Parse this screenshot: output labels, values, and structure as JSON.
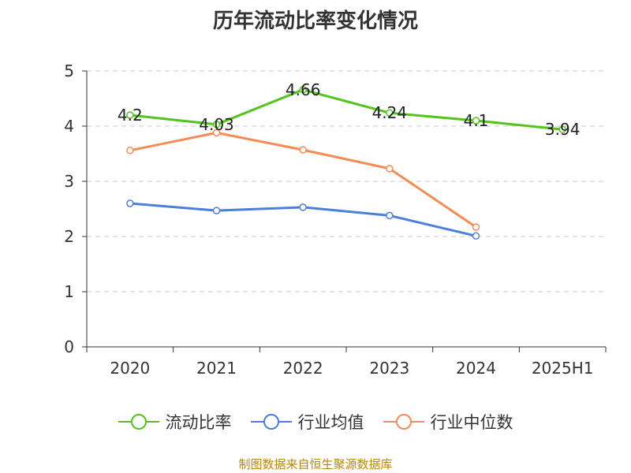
{
  "chart_data": {
    "type": "line",
    "title": "历年流动比率变化情况",
    "categories": [
      "2020",
      "2021",
      "2022",
      "2023",
      "2024",
      "2025H1"
    ],
    "ylim": [
      0,
      5
    ],
    "yticks": [
      0,
      1,
      2,
      3,
      4,
      5
    ],
    "grid": true,
    "legend_position": "bottom",
    "series": [
      {
        "name": "流动比率",
        "color": "#52c41a",
        "values": [
          4.2,
          4.03,
          4.66,
          4.24,
          4.1,
          3.94
        ],
        "labels": [
          "4.2",
          "4.03",
          "4.66",
          "4.24",
          "4.1",
          "3.94"
        ],
        "show_labels": true
      },
      {
        "name": "行业均值",
        "color": "#4a7fdb",
        "values": [
          2.6,
          2.47,
          2.53,
          2.38,
          2.01,
          null
        ],
        "show_labels": false
      },
      {
        "name": "行业中位数",
        "color": "#f58b55",
        "values": [
          3.56,
          3.88,
          3.57,
          3.23,
          2.17,
          null
        ],
        "show_labels": false
      }
    ]
  },
  "source_text": "制图数据来自恒生聚源数据库"
}
